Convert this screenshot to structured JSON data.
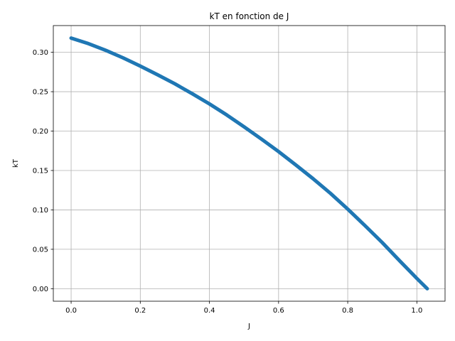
{
  "chart_data": {
    "type": "line",
    "title": "kT en fonction de J",
    "xlabel": "J",
    "ylabel": "kT",
    "xlim": [
      -0.0515,
      1.0815
    ],
    "ylim": [
      -0.0159,
      0.3339
    ],
    "xticks": [
      0.0,
      0.2,
      0.4,
      0.6,
      0.8,
      1.0
    ],
    "xtick_labels": [
      "0.0",
      "0.2",
      "0.4",
      "0.6",
      "0.8",
      "1.0"
    ],
    "yticks": [
      0.0,
      0.05,
      0.1,
      0.15,
      0.2,
      0.25,
      0.3
    ],
    "ytick_labels": [
      "0.00",
      "0.05",
      "0.10",
      "0.15",
      "0.20",
      "0.25",
      "0.30"
    ],
    "grid": true,
    "series": [
      {
        "color": "#1f77b4",
        "points": [
          [
            0.0,
            0.318
          ],
          [
            0.05,
            0.311
          ],
          [
            0.1,
            0.3025
          ],
          [
            0.15,
            0.293
          ],
          [
            0.2,
            0.2825
          ],
          [
            0.25,
            0.2715
          ],
          [
            0.3,
            0.26
          ],
          [
            0.35,
            0.2475
          ],
          [
            0.4,
            0.2345
          ],
          [
            0.45,
            0.2205
          ],
          [
            0.5,
            0.2055
          ],
          [
            0.55,
            0.19
          ],
          [
            0.6,
            0.174
          ],
          [
            0.65,
            0.157
          ],
          [
            0.7,
            0.1395
          ],
          [
            0.75,
            0.121
          ],
          [
            0.8,
            0.101
          ],
          [
            0.85,
            0.08
          ],
          [
            0.9,
            0.0585
          ],
          [
            0.95,
            0.0355
          ],
          [
            1.0,
            0.013
          ],
          [
            1.03,
            0.0
          ]
        ]
      }
    ]
  }
}
